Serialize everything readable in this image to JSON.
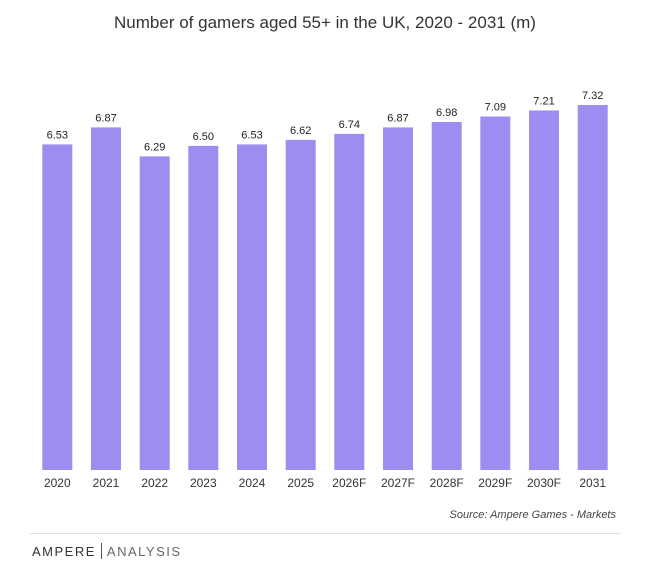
{
  "chart_data": {
    "type": "bar",
    "title": "Number of gamers aged 55+ in the UK, 2020 - 2031 (m)",
    "categories": [
      "2020",
      "2021",
      "2022",
      "2023",
      "2024",
      "2025",
      "2026F",
      "2027F",
      "2028F",
      "2029F",
      "2030F",
      "2031"
    ],
    "values": [
      6.53,
      6.87,
      6.29,
      6.5,
      6.53,
      6.62,
      6.74,
      6.87,
      6.98,
      7.09,
      7.21,
      7.32
    ],
    "value_labels": [
      "6.53",
      "6.87",
      "6.29",
      "6.50",
      "6.53",
      "6.62",
      "6.74",
      "6.87",
      "6.98",
      "7.09",
      "7.21",
      "7.32"
    ],
    "xlabel": "",
    "ylabel": "",
    "ylim": [
      0,
      7.32
    ],
    "grid": false,
    "legend": "none",
    "bar_color": "#9d8df1"
  },
  "source_text": "Source:  Ampere Games - Markets",
  "brand": {
    "primary": "AMPERE",
    "secondary": "ANALYSIS"
  }
}
